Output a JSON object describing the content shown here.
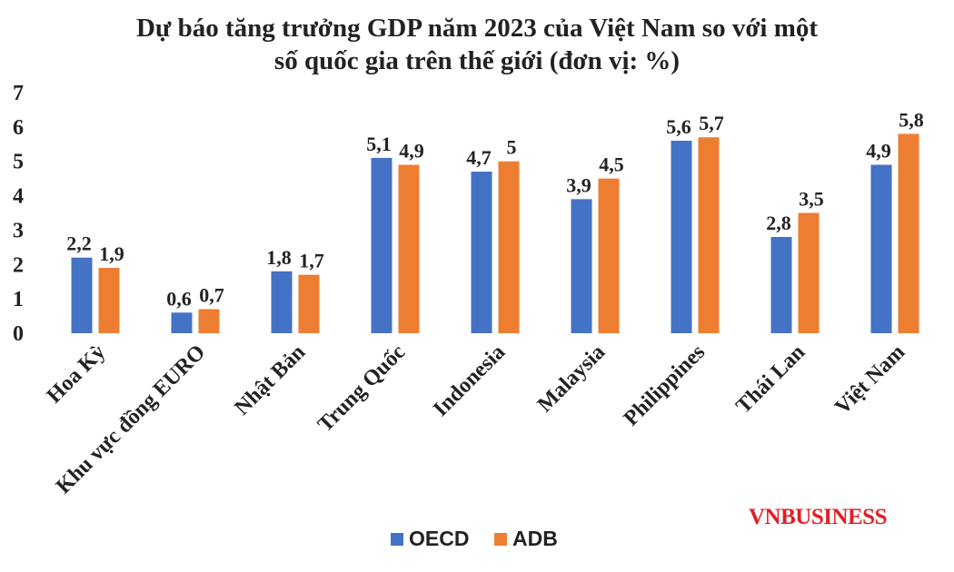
{
  "chart_data": {
    "type": "bar",
    "title_lines": [
      "Dự báo tăng trưởng GDP năm 2023 của Việt Nam so với một",
      "số quốc gia trên thế giới (đơn vị: %)"
    ],
    "categories": [
      "Hoa Kỳ",
      "Khu vực đồng EURO",
      "Nhật Bản",
      "Trung Quốc",
      "Indonesia",
      "Malaysia",
      "Philippines",
      "Thái Lan",
      "Việt Nam"
    ],
    "series": [
      {
        "name": "OECD",
        "color": "#4472c4",
        "values": [
          2.2,
          0.6,
          1.8,
          5.1,
          4.7,
          3.9,
          5.6,
          2.8,
          4.9
        ],
        "labels": [
          "2,2",
          "0,6",
          "1,8",
          "5,1",
          "4,7",
          "3,9",
          "5,6",
          "2,8",
          "4,9"
        ]
      },
      {
        "name": "ADB",
        "color": "#ed7d31",
        "values": [
          1.9,
          0.7,
          1.7,
          4.9,
          5.0,
          4.5,
          5.7,
          3.5,
          5.8
        ],
        "labels": [
          "1,9",
          "0,7",
          "1,7",
          "4,9",
          "5",
          "4,5",
          "5,7",
          "3,5",
          "5,8"
        ]
      }
    ],
    "yticks": [
      "0",
      "1",
      "2",
      "3",
      "4",
      "5",
      "6",
      "7"
    ],
    "ylim": [
      0,
      7
    ],
    "grid": false,
    "legend_position": "bottom-center"
  },
  "watermark": "VNBUSINESS"
}
